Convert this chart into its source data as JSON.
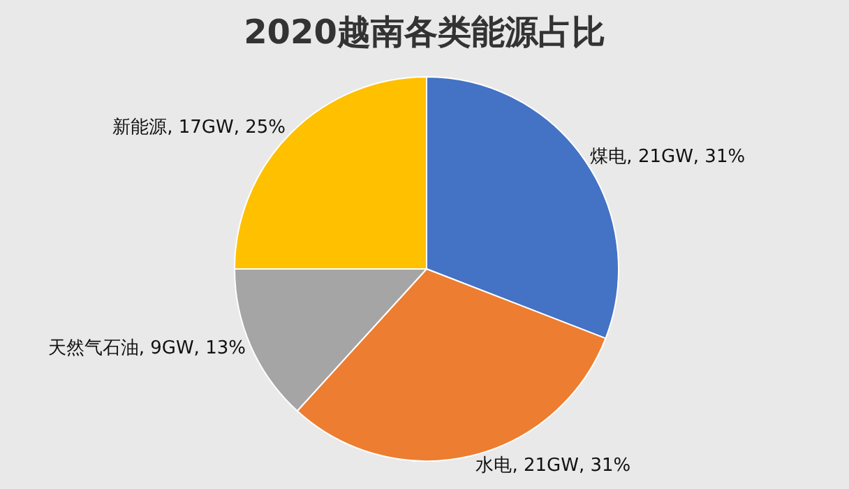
{
  "chart_data": {
    "type": "pie",
    "title": "2020越南各类能源占比",
    "categories": [
      "煤电",
      "水电",
      "天然气石油",
      "新能源"
    ],
    "values": [
      21,
      21,
      9,
      17
    ],
    "value_labels": [
      "21GW, 31%",
      "21GW, 31%",
      "9GW, 13%",
      "17GW, 25%"
    ],
    "colors": [
      "#4472c4",
      "#ed7d31",
      "#a5a5a5",
      "#ffc000"
    ],
    "legend": false
  }
}
